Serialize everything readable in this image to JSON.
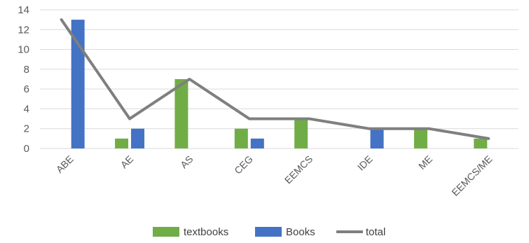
{
  "chart_data": {
    "type": "bar",
    "categories": [
      "ABE",
      "AE",
      "AS",
      "CEG",
      "EEMCS",
      "IDE",
      "ME",
      "EEMCS/ME"
    ],
    "series": [
      {
        "name": "textbooks",
        "kind": "bar",
        "color": "#70ad47",
        "values": [
          0,
          1,
          7,
          2,
          3,
          0,
          2,
          1
        ]
      },
      {
        "name": "Books",
        "kind": "bar",
        "color": "#4472c4",
        "values": [
          13,
          2,
          0,
          1,
          0,
          2,
          0,
          0
        ]
      },
      {
        "name": "total",
        "kind": "line",
        "color": "#7f7f7f",
        "values": [
          13,
          3,
          7,
          3,
          3,
          2,
          2,
          1
        ]
      }
    ],
    "y_ticks": [
      "0",
      "2",
      "4",
      "6",
      "8",
      "10",
      "12",
      "14"
    ],
    "ylim": [
      0,
      14
    ],
    "grid": true,
    "legend_position": "bottom"
  }
}
